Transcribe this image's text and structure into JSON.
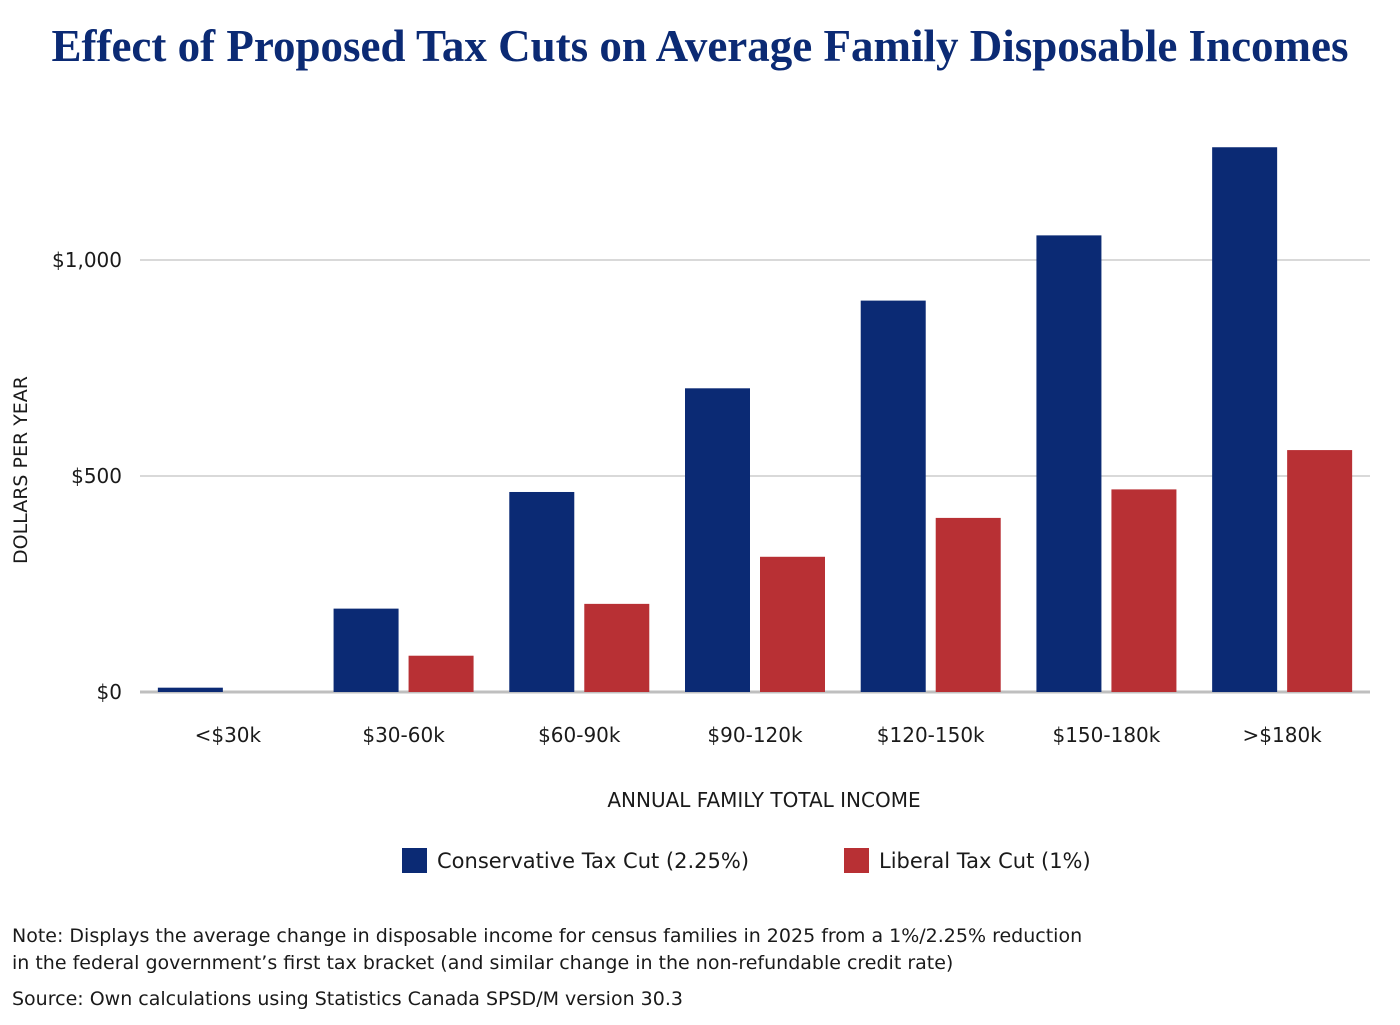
{
  "colors": {
    "title": "#0b2a74",
    "conservative": "#0b2a74",
    "liberal": "#b83034",
    "grid": "#d9d9d9",
    "axis": "#bfbfbf",
    "text": "#1a1a1a"
  },
  "chart_data": {
    "type": "bar",
    "title": "Effect of Proposed Tax Cuts on Average Family Disposable Incomes",
    "xlabel": "ANNUAL FAMILY TOTAL INCOME",
    "ylabel": "DOLLARS PER YEAR",
    "categories": [
      "<$30k",
      "$30-60k",
      "$60-90k",
      "$90-120k",
      "$120-150k",
      "$150-180k",
      ">$180k"
    ],
    "series": [
      {
        "name": "Conservative Tax Cut (2.25%)",
        "color": "#0b2a74",
        "values": [
          10,
          193,
          463,
          703,
          906,
          1057,
          1261
        ]
      },
      {
        "name": "Liberal Tax Cut (1%)",
        "color": "#b83034",
        "values": [
          0,
          84,
          204,
          313,
          403,
          469,
          560
        ]
      }
    ],
    "ylim": [
      0,
      1261
    ],
    "yticks": [
      0,
      500,
      1000
    ],
    "ytick_labels": [
      "$0",
      "$500",
      "$1,000"
    ],
    "grid": true,
    "legend_position": "bottom"
  },
  "notes": {
    "note_line1": "Note: Displays the average change in disposable income for census families in 2025 from a 1%/2.25% reduction",
    "note_line2": "in the federal government’s first tax bracket (and similar change in the non-refundable credit rate)",
    "source": "Source: Own calculations using Statistics Canada SPSD/M version 30.3"
  }
}
